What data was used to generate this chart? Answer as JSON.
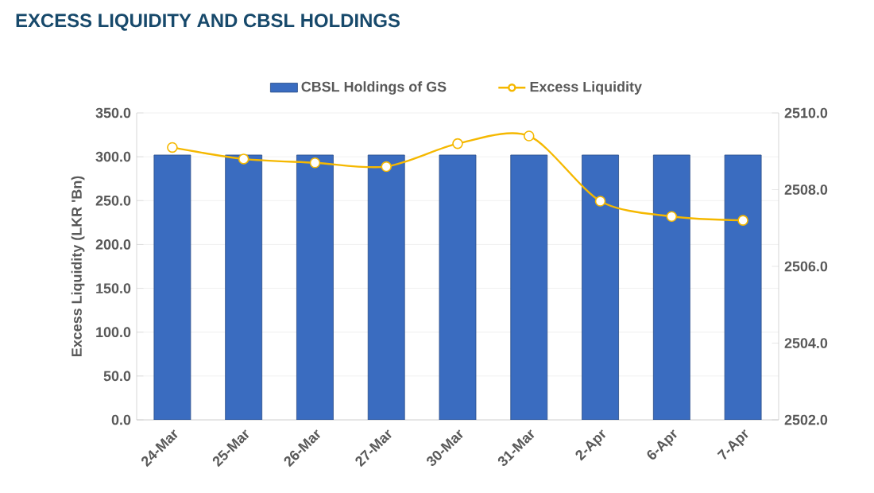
{
  "chart_data": {
    "type": "bar",
    "title": "EXCESS LIQUIDITY AND CBSL HOLDINGS",
    "ylabel": "Excess Liquidity (LKR 'Bn)",
    "categories": [
      "24-Mar",
      "25-Mar",
      "26-Mar",
      "27-Mar",
      "30-Mar",
      "31-Mar",
      "2-Apr",
      "6-Apr",
      "7-Apr"
    ],
    "series": [
      {
        "name": "CBSL Holdings of GS",
        "color": "#3a6cc0",
        "values": [
          302,
          302,
          302,
          302,
          302,
          302,
          302,
          302,
          302
        ]
      },
      {
        "name": "Excess Liquidity",
        "type": "line",
        "axis": "y2",
        "color": "#f5b800",
        "values": [
          2509.1,
          2508.8,
          2508.7,
          2508.6,
          2509.2,
          2509.4,
          2507.7,
          2507.3,
          2507.2
        ]
      }
    ],
    "ylim": [
      0,
      350
    ],
    "yticks": [
      {
        "value": 0,
        "label": "0.0"
      },
      {
        "value": 50,
        "label": "50.0"
      },
      {
        "value": 100,
        "label": "100.0"
      },
      {
        "value": 150,
        "label": "150.0"
      },
      {
        "value": 200,
        "label": "200.0"
      },
      {
        "value": 250,
        "label": "250.0"
      },
      {
        "value": 300,
        "label": "300.0"
      },
      {
        "value": 350,
        "label": "350.0"
      }
    ],
    "y2lim": [
      2502,
      2510
    ],
    "y2ticks": [
      {
        "value": 2502,
        "label": "2502.0"
      },
      {
        "value": 2504,
        "label": "2504.0"
      },
      {
        "value": 2506,
        "label": "2506.0"
      },
      {
        "value": 2508,
        "label": "2508.0"
      },
      {
        "value": 2510,
        "label": "2510.0"
      }
    ],
    "grid": "y",
    "legend": "top",
    "marker": "circle"
  }
}
